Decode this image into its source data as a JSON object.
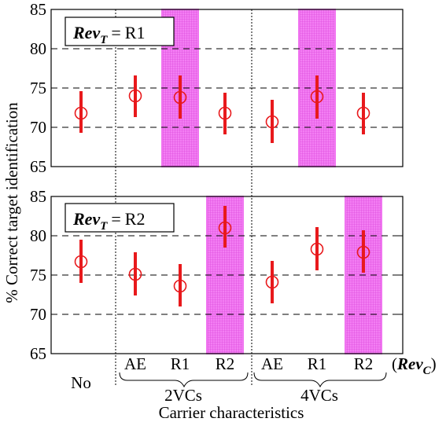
{
  "chart_data": [
    {
      "type": "scatter",
      "error_bars": true,
      "legend": {
        "variable": "Rev",
        "subscript": "T",
        "equals": "=",
        "value": "R1"
      },
      "legend_position": "top-left",
      "categories": [
        "No",
        "AE",
        "R1",
        "R2",
        "AE",
        "R1",
        "R2"
      ],
      "means": [
        71.8,
        74.0,
        73.8,
        71.8,
        70.7,
        73.9,
        71.8
      ],
      "err_low": [
        69.3,
        71.3,
        71.1,
        69.1,
        68.0,
        71.1,
        69.1
      ],
      "err_high": [
        74.6,
        76.6,
        76.6,
        74.4,
        73.5,
        76.6,
        74.4
      ],
      "highlighted": [
        false,
        false,
        true,
        false,
        false,
        true,
        false
      ],
      "ylim": [
        65,
        85
      ],
      "yticks": [
        65,
        70,
        75,
        80,
        85
      ],
      "gridlines": [
        70,
        75,
        80
      ],
      "grid": true
    },
    {
      "type": "scatter",
      "error_bars": true,
      "legend": {
        "variable": "Rev",
        "subscript": "T",
        "equals": "=",
        "value": "R2"
      },
      "legend_position": "top-left",
      "categories": [
        "No",
        "AE",
        "R1",
        "R2",
        "AE",
        "R1",
        "R2"
      ],
      "means": [
        76.7,
        75.1,
        73.6,
        81.0,
        74.1,
        78.3,
        77.9
      ],
      "err_low": [
        74.0,
        72.4,
        71.0,
        78.5,
        71.4,
        75.6,
        75.3
      ],
      "err_high": [
        79.5,
        77.9,
        76.4,
        83.8,
        76.8,
        81.1,
        80.7
      ],
      "highlighted": [
        false,
        false,
        false,
        true,
        false,
        false,
        true
      ],
      "ylim": [
        65,
        85
      ],
      "yticks": [
        65,
        70,
        75,
        80,
        85
      ],
      "gridlines": [
        70,
        75,
        80
      ],
      "grid": true
    }
  ],
  "ylabel": "% Correct target identification",
  "xlabel": "Carrier characteristics",
  "rev_c_label": {
    "variable": "Rev",
    "subscript": "C"
  },
  "group_labels": [
    "2VCs",
    "4VCs"
  ],
  "colors": {
    "marker": "#e8191c",
    "highlight": "#f075f0",
    "grid": "#000000"
  }
}
